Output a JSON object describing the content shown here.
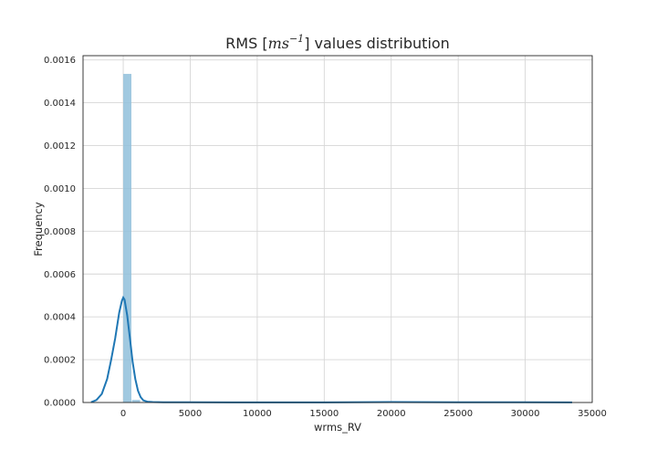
{
  "chart_data": {
    "type": "bar",
    "title": {
      "prefix": "RMS [",
      "math_base": "ms",
      "math_sup": "−1",
      "suffix": "] values distribution"
    },
    "xlabel": "wrms_RV",
    "ylabel": "Frequency",
    "xlim": [
      -3000,
      35000
    ],
    "ylim": [
      0,
      0.00162
    ],
    "xticks": [
      0,
      5000,
      10000,
      15000,
      20000,
      25000,
      30000,
      35000
    ],
    "yticks": [
      0,
      0.0002,
      0.0004,
      0.0006,
      0.0008,
      0.001,
      0.0012,
      0.0014,
      0.0016
    ],
    "xtick_labels": [
      "0",
      "5000",
      "10000",
      "15000",
      "20000",
      "25000",
      "30000",
      "35000"
    ],
    "ytick_labels": [
      "0.0000",
      "0.0002",
      "0.0004",
      "0.0006",
      "0.0008",
      "0.0010",
      "0.0012",
      "0.0014",
      "0.0016"
    ],
    "grid": true,
    "histogram": {
      "bin_edges": [
        0,
        650,
        1300
      ],
      "density": [
        0.001535,
        1.2e-05
      ]
    },
    "kde": {
      "x": [
        -2400,
        -2000,
        -1600,
        -1200,
        -900,
        -600,
        -300,
        -100,
        0,
        100,
        300,
        500,
        700,
        900,
        1100,
        1300,
        1500,
        1800,
        2200,
        3000,
        5000,
        10000,
        15000,
        20000,
        25000,
        30000,
        33500
      ],
      "y": [
        1.5e-06,
        1.15e-05,
        4e-05,
        0.00011,
        0.0002,
        0.0003,
        0.00042,
        0.000475,
        0.00049,
        0.00048,
        0.000405,
        0.0003,
        0.00019,
        0.00011,
        5.5e-05,
        2.5e-05,
        1e-05,
        4e-06,
        2e-06,
        1.2e-06,
        8e-07,
        5e-07,
        4e-07,
        2e-06,
        1.2e-06,
        1e-06,
        5e-07
      ],
      "color": "#1f77b4"
    },
    "bar_color": "#91bfdb"
  }
}
